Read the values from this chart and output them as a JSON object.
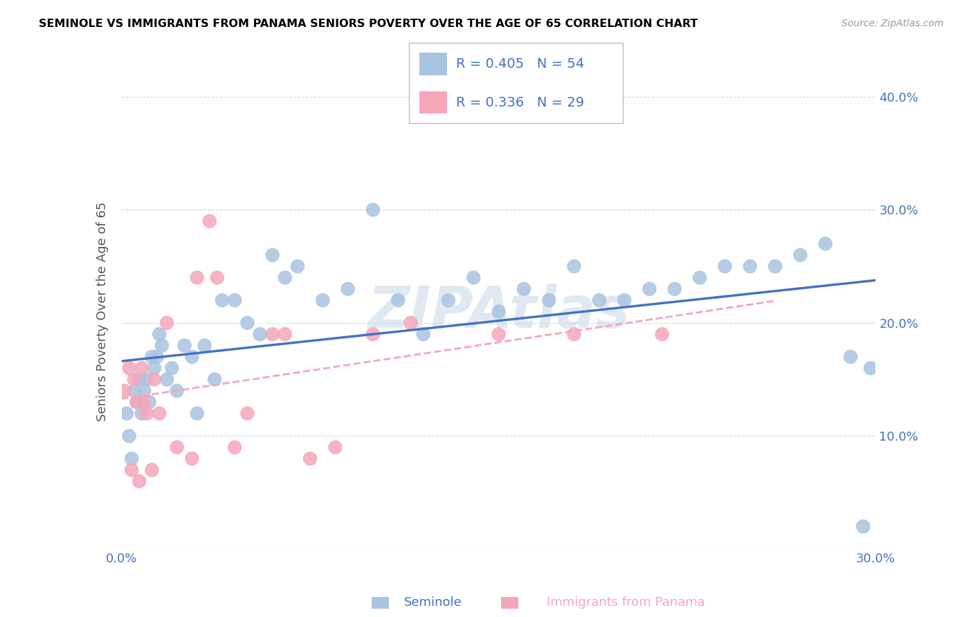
{
  "title": "SEMINOLE VS IMMIGRANTS FROM PANAMA SENIORS POVERTY OVER THE AGE OF 65 CORRELATION CHART",
  "source": "Source: ZipAtlas.com",
  "ylabel": "Seniors Poverty Over the Age of 65",
  "xlim": [
    0.0,
    0.3
  ],
  "ylim": [
    0.0,
    0.42
  ],
  "xtick_positions": [
    0.0,
    0.05,
    0.1,
    0.15,
    0.2,
    0.25,
    0.3
  ],
  "xtick_labels": [
    "0.0%",
    "",
    "",
    "",
    "",
    "",
    "30.0%"
  ],
  "ytick_positions": [
    0.0,
    0.1,
    0.2,
    0.3,
    0.4
  ],
  "ytick_labels": [
    "",
    "10.0%",
    "20.0%",
    "30.0%",
    "40.0%"
  ],
  "seminole_R": 0.405,
  "seminole_N": 54,
  "panama_R": 0.336,
  "panama_N": 29,
  "seminole_color": "#a8c4e0",
  "panama_color": "#f4a7b9",
  "seminole_line_color": "#4472c4",
  "panama_line_color": "#f4a7b9",
  "watermark": "ZIPAtlas",
  "seminole_x": [
    0.002,
    0.003,
    0.004,
    0.005,
    0.006,
    0.007,
    0.008,
    0.009,
    0.01,
    0.011,
    0.012,
    0.013,
    0.014,
    0.015,
    0.016,
    0.018,
    0.02,
    0.022,
    0.025,
    0.028,
    0.03,
    0.033,
    0.037,
    0.04,
    0.045,
    0.05,
    0.055,
    0.06,
    0.065,
    0.07,
    0.08,
    0.09,
    0.1,
    0.11,
    0.12,
    0.13,
    0.14,
    0.15,
    0.16,
    0.17,
    0.18,
    0.19,
    0.2,
    0.21,
    0.22,
    0.23,
    0.24,
    0.25,
    0.26,
    0.27,
    0.28,
    0.29,
    0.295,
    0.298
  ],
  "seminole_y": [
    0.12,
    0.1,
    0.08,
    0.14,
    0.13,
    0.15,
    0.12,
    0.14,
    0.15,
    0.13,
    0.17,
    0.16,
    0.17,
    0.19,
    0.18,
    0.15,
    0.16,
    0.14,
    0.18,
    0.17,
    0.12,
    0.18,
    0.15,
    0.22,
    0.22,
    0.2,
    0.19,
    0.26,
    0.24,
    0.25,
    0.22,
    0.23,
    0.3,
    0.22,
    0.19,
    0.22,
    0.24,
    0.21,
    0.23,
    0.22,
    0.25,
    0.22,
    0.22,
    0.23,
    0.23,
    0.24,
    0.25,
    0.25,
    0.25,
    0.26,
    0.27,
    0.17,
    0.02,
    0.16
  ],
  "panama_x": [
    0.001,
    0.003,
    0.004,
    0.005,
    0.006,
    0.007,
    0.008,
    0.009,
    0.01,
    0.012,
    0.013,
    0.015,
    0.018,
    0.022,
    0.028,
    0.03,
    0.035,
    0.038,
    0.045,
    0.05,
    0.06,
    0.065,
    0.075,
    0.085,
    0.1,
    0.115,
    0.15,
    0.18,
    0.215
  ],
  "panama_y": [
    0.14,
    0.16,
    0.07,
    0.15,
    0.13,
    0.06,
    0.16,
    0.13,
    0.12,
    0.07,
    0.15,
    0.12,
    0.2,
    0.09,
    0.08,
    0.24,
    0.29,
    0.24,
    0.09,
    0.12,
    0.19,
    0.19,
    0.08,
    0.09,
    0.19,
    0.2,
    0.19,
    0.19,
    0.19
  ]
}
